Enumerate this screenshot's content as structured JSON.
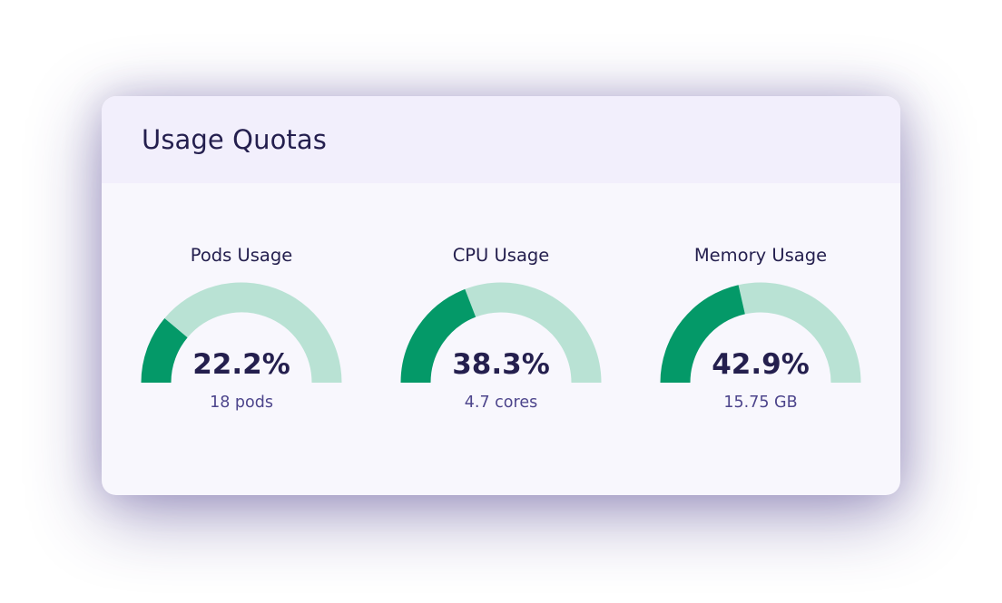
{
  "card": {
    "title": "Usage Quotas"
  },
  "colors": {
    "filled": "#049968",
    "track": "#b9e2d4",
    "text_primary": "#241f4e",
    "text_secondary": "#4d458c"
  },
  "gauges": [
    {
      "title": "Pods Usage",
      "percent_label": "22.2%",
      "value": 22.2,
      "detail": "18 pods"
    },
    {
      "title": "CPU Usage",
      "percent_label": "38.3%",
      "value": 38.3,
      "detail": "4.7 cores"
    },
    {
      "title": "Memory Usage",
      "percent_label": "42.9%",
      "value": 42.9,
      "detail": "15.75 GB"
    }
  ]
}
